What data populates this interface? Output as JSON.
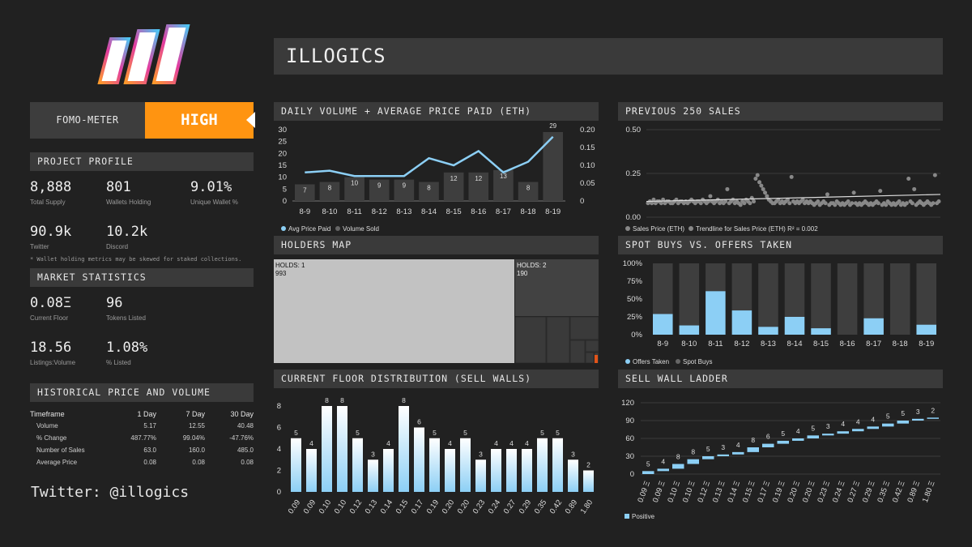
{
  "title": "ILLOGICS",
  "fomo": {
    "label": "FOMO-METER",
    "value": "HIGH"
  },
  "profile": {
    "heading": "PROJECT PROFILE",
    "stats": [
      {
        "value": "8,888",
        "label": "Total Supply"
      },
      {
        "value": "801",
        "label": "Wallets Holding"
      },
      {
        "value": "9.01%",
        "label": "Unique Wallet %"
      },
      {
        "value": "90.9k",
        "label": "Twitter"
      },
      {
        "value": "10.2k",
        "label": "Discord"
      }
    ],
    "note": "* Wallet holding metrics may be skewed for staked collections."
  },
  "market": {
    "heading": "MARKET STATISTICS",
    "stats": [
      {
        "value": "0.08Ξ",
        "label": "Current Floor"
      },
      {
        "value": "96",
        "label": "Tokens Listed"
      },
      {
        "value": "18.56",
        "label": "Listings:Volume"
      },
      {
        "value": "1.08%",
        "label": "% Listed"
      }
    ]
  },
  "historical": {
    "heading": "HISTORICAL PRICE AND VOLUME",
    "header": [
      "Timeframe",
      "1 Day",
      "7 Day",
      "30 Day"
    ],
    "rows": [
      [
        "Volume",
        "5.17",
        "12.55",
        "40.48"
      ],
      [
        "% Change",
        "487.77%",
        "99.04%",
        "-47.76%"
      ],
      [
        "Number of Sales",
        "63.0",
        "160.0",
        "485.0"
      ],
      [
        "Average Price",
        "0.08",
        "0.08",
        "0.08"
      ]
    ]
  },
  "twitter": "Twitter: @illogics",
  "panels": {
    "daily": "DAILY VOLUME + AVERAGE PRICE PAID (ETH)",
    "prev_sales": "PREVIOUS 250 SALES",
    "holders": "HOLDERS MAP",
    "spot": "SPOT BUYS VS. OFFERS TAKEN",
    "floor": "CURRENT FLOOR DISTRIBUTION (SELL WALLS)",
    "ladder": "SELL WALL LADDER"
  },
  "colors": {
    "accent": "#ff9411",
    "blue": "#8ccff5",
    "bar_dark": "#3e3e3e",
    "panel": "#3a3a3a"
  },
  "chart_data": [
    {
      "id": "daily",
      "type": "bar",
      "categories": [
        "8-9",
        "8-10",
        "8-11",
        "8-12",
        "8-13",
        "8-14",
        "8-15",
        "8-16",
        "8-17",
        "8-18",
        "8-19"
      ],
      "series": [
        {
          "name": "Volume Sold",
          "values": [
            7,
            8,
            10,
            9,
            9,
            8,
            12,
            12,
            13,
            8,
            29
          ]
        },
        {
          "name": "Avg Price Paid",
          "values": [
            0.08,
            0.085,
            0.07,
            0.07,
            0.07,
            0.12,
            0.1,
            0.14,
            0.08,
            0.11,
            0.18
          ]
        }
      ],
      "y_left": {
        "ticks": [
          0,
          5,
          10,
          15,
          20,
          25,
          30
        ],
        "ylim": [
          0,
          30
        ]
      },
      "y_right": {
        "ticks": [
          "0",
          "0.05",
          "0.10",
          "0.15",
          "0.20"
        ],
        "ylim": [
          0,
          0.2
        ]
      }
    },
    {
      "id": "prev_sales",
      "type": "scatter",
      "y_ticks": [
        "0.00",
        "0.25",
        "0.50"
      ],
      "ylim": [
        0,
        0.5
      ],
      "series": [
        {
          "name": "Sales Price (ETH)"
        },
        {
          "name": "Trendline for Sales Price (ETH) R² = 0.002"
        }
      ],
      "trend": [
        0.09,
        0.13
      ],
      "points": [
        0.08,
        0.09,
        0.08,
        0.1,
        0.08,
        0.09,
        0.09,
        0.08,
        0.1,
        0.08,
        0.09,
        0.09,
        0.08,
        0.08,
        0.09,
        0.1,
        0.08,
        0.09,
        0.09,
        0.08,
        0.09,
        0.08,
        0.09,
        0.1,
        0.09,
        0.08,
        0.09,
        0.09,
        0.08,
        0.1,
        0.09,
        0.08,
        0.09,
        0.12,
        0.09,
        0.08,
        0.09,
        0.1,
        0.08,
        0.09,
        0.08,
        0.09,
        0.16,
        0.08,
        0.09,
        0.1,
        0.08,
        0.09,
        0.08,
        0.07,
        0.09,
        0.08,
        0.1,
        0.09,
        0.08,
        0.11,
        0.09,
        0.22,
        0.24,
        0.2,
        0.18,
        0.16,
        0.14,
        0.12,
        0.1,
        0.09,
        0.08,
        0.08,
        0.09,
        0.1,
        0.08,
        0.09,
        0.08,
        0.09,
        0.1,
        0.08,
        0.23,
        0.09,
        0.08,
        0.09,
        0.08,
        0.09,
        0.1,
        0.08,
        0.09,
        0.08,
        0.09,
        0.08,
        0.07,
        0.08,
        0.09,
        0.07,
        0.08,
        0.09,
        0.08,
        0.13,
        0.07,
        0.08,
        0.08,
        0.07,
        0.09,
        0.08,
        0.07,
        0.08,
        0.07,
        0.08,
        0.09,
        0.07,
        0.08,
        0.14,
        0.08,
        0.07,
        0.08,
        0.07,
        0.08,
        0.09,
        0.08,
        0.07,
        0.08,
        0.07,
        0.08,
        0.09,
        0.08,
        0.15,
        0.07,
        0.08,
        0.07,
        0.09,
        0.08,
        0.07,
        0.08,
        0.07,
        0.08,
        0.09,
        0.07,
        0.08,
        0.07,
        0.08,
        0.22,
        0.09,
        0.08,
        0.16,
        0.07,
        0.08,
        0.09,
        0.08,
        0.07,
        0.08,
        0.09,
        0.08,
        0.07,
        0.08,
        0.24,
        0.08,
        0.09
      ]
    },
    {
      "id": "holders",
      "type": "treemap",
      "items": [
        {
          "label": "HOLDS: 1",
          "value": 993
        },
        {
          "label": "HOLDS: 2",
          "value": 190
        }
      ]
    },
    {
      "id": "spot",
      "type": "bar",
      "categories": [
        "8-9",
        "8-10",
        "8-11",
        "8-12",
        "8-13",
        "8-14",
        "8-15",
        "8-16",
        "8-17",
        "8-18",
        "8-19"
      ],
      "series": [
        {
          "name": "Offers Taken",
          "values": [
            29,
            13,
            61,
            34,
            11,
            25,
            9,
            0,
            23,
            0,
            14
          ]
        },
        {
          "name": "Spot Buys",
          "values": [
            71,
            87,
            39,
            66,
            89,
            75,
            91,
            100,
            77,
            100,
            86
          ]
        }
      ],
      "y_ticks": [
        "0%",
        "25%",
        "50%",
        "75%",
        "100%"
      ],
      "ylim": [
        0,
        100
      ]
    },
    {
      "id": "floor",
      "type": "bar",
      "categories": [
        "0.09",
        "0.09",
        "0.10",
        "0.10",
        "0.12",
        "0.13",
        "0.14",
        "0.15",
        "0.17",
        "0.19",
        "0.20",
        "0.20",
        "0.23",
        "0.24",
        "0.27",
        "0.29",
        "0.35",
        "0.42",
        "0.89",
        "1.80"
      ],
      "values": [
        5,
        4,
        8,
        8,
        5,
        3,
        4,
        8,
        6,
        5,
        4,
        5,
        3,
        4,
        4,
        4,
        5,
        5,
        3,
        2
      ],
      "y_ticks": [
        0,
        2,
        4,
        6,
        8
      ],
      "ylim": [
        0,
        8
      ]
    },
    {
      "id": "ladder",
      "type": "waterfall",
      "categories": [
        "0.09 Ξ",
        "0.09 Ξ",
        "0.10 Ξ",
        "0.10 Ξ",
        "0.12 Ξ",
        "0.13 Ξ",
        "0.14 Ξ",
        "0.15 Ξ",
        "0.17 Ξ",
        "0.19 Ξ",
        "0.20 Ξ",
        "0.20 Ξ",
        "0.23 Ξ",
        "0.24 Ξ",
        "0.27 Ξ",
        "0.29 Ξ",
        "0.35 Ξ",
        "0.42 Ξ",
        "0.89 Ξ",
        "1.80 Ξ"
      ],
      "values": [
        5,
        4,
        8,
        8,
        5,
        3,
        4,
        8,
        6,
        5,
        4,
        5,
        3,
        4,
        4,
        4,
        5,
        5,
        3,
        2
      ],
      "y_ticks": [
        0,
        30,
        60,
        90,
        120
      ],
      "ylim": [
        0,
        120
      ],
      "series": [
        {
          "name": "Positive"
        }
      ]
    }
  ]
}
